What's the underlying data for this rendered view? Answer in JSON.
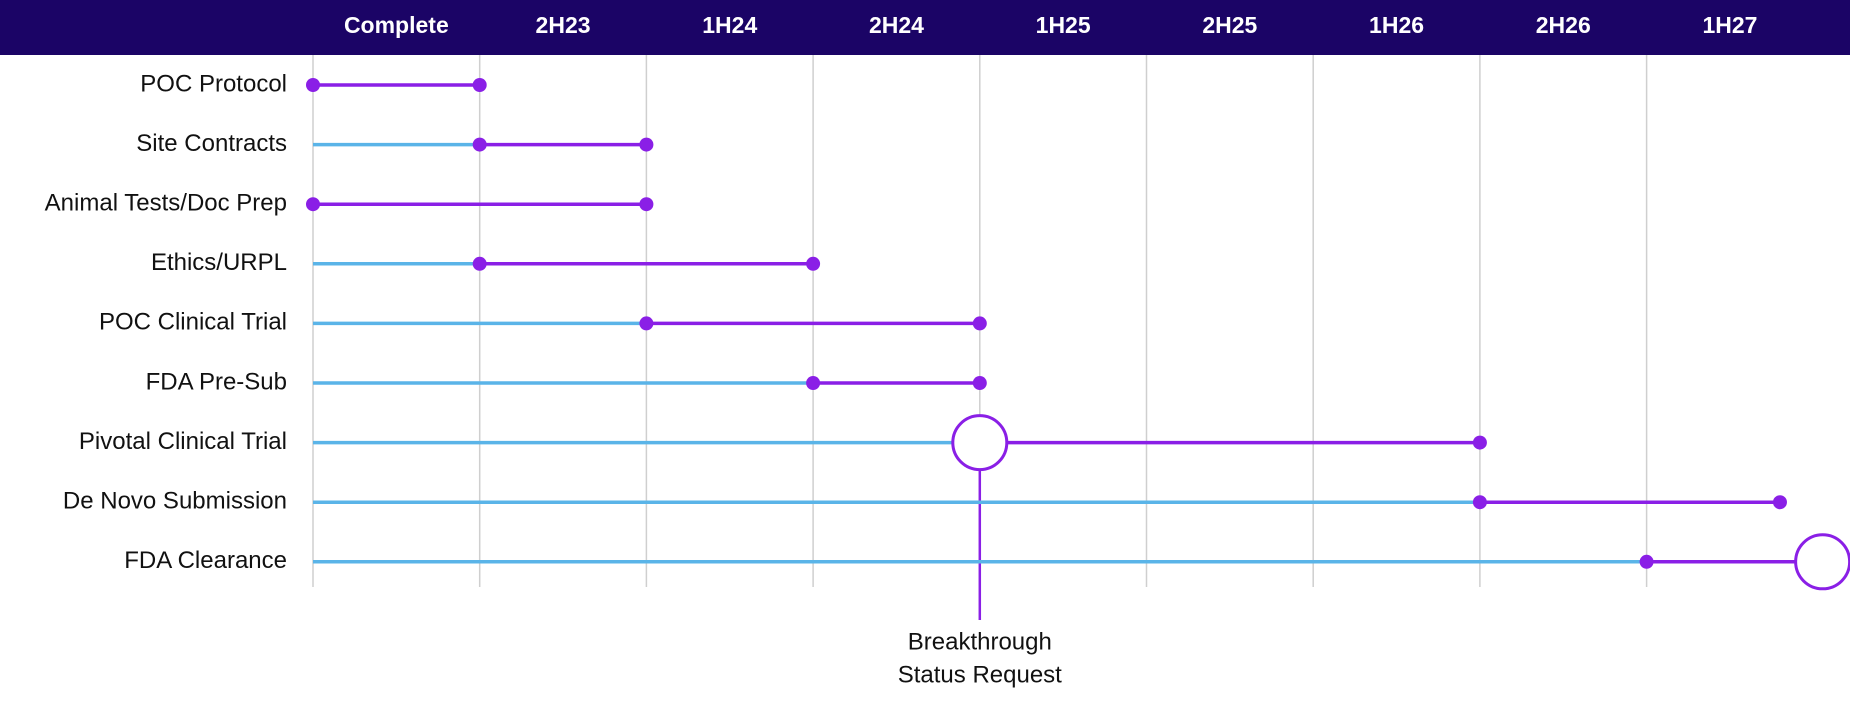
{
  "chart_data": {
    "type": "timeline",
    "columns": [
      "Complete",
      "2H23",
      "1H24",
      "2H24",
      "1H25",
      "2H25",
      "1H26",
      "2H26",
      "1H27"
    ],
    "xlim": [
      0,
      9
    ],
    "xticks": [
      0,
      1,
      2,
      3,
      4,
      5,
      6,
      7,
      8
    ],
    "grid": true,
    "header_color": "#1b0466",
    "past_color": "#5ab4e8",
    "color": "#8a1fe6",
    "tasks": [
      {
        "label": "POC Protocol",
        "start": 0,
        "end": 1
      },
      {
        "label": "Site Contracts",
        "start": 1,
        "end": 2
      },
      {
        "label": "Animal Tests/Doc Prep",
        "start": 0,
        "end": 2
      },
      {
        "label": "Ethics/URPL",
        "start": 1,
        "end": 3
      },
      {
        "label": "POC Clinical Trial",
        "start": 2,
        "end": 4
      },
      {
        "label": "FDA Pre-Sub",
        "start": 3,
        "end": 4
      },
      {
        "label": "Pivotal Clinical Trial",
        "start": 4,
        "end": 7,
        "milestone": "start"
      },
      {
        "label": "De Novo Submission",
        "start": 7,
        "end": 8.8
      },
      {
        "label": "FDA Clearance",
        "start": 8,
        "end": 8.9,
        "milestone": "end"
      }
    ],
    "annotation": {
      "text": [
        "Breakthrough",
        "Status Request"
      ],
      "x": 4,
      "task": 6
    }
  }
}
